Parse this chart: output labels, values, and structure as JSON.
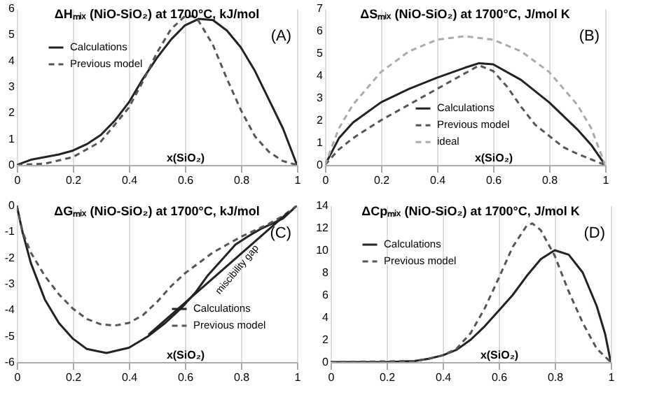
{
  "chart_data": [
    {
      "type": "line",
      "title": "ΔHₘᵢₓ (NiO-SiO₂) at 1700°C, kJ/mol",
      "xlabel": "x(SiO₂)",
      "xlim": [
        0,
        1
      ],
      "xticks": [
        0,
        0.2,
        0.4,
        0.6,
        0.8,
        1
      ],
      "ylim": [
        0,
        6
      ],
      "yticks": [
        0,
        1,
        2,
        3,
        4,
        5,
        6
      ],
      "grid": "x",
      "legend": "top left",
      "annotations": [
        "(A)"
      ],
      "series": [
        {
          "name": "Calculations",
          "color": "#222222",
          "line_style": "solid",
          "x": [
            0,
            0.05,
            0.1,
            0.15,
            0.2,
            0.25,
            0.3,
            0.35,
            0.4,
            0.45,
            0.5,
            0.55,
            0.6,
            0.65,
            0.7,
            0.75,
            0.8,
            0.85,
            0.9,
            0.95,
            1
          ],
          "values": [
            0,
            0.2,
            0.3,
            0.4,
            0.55,
            0.8,
            1.15,
            1.7,
            2.4,
            3.3,
            4.1,
            4.8,
            5.35,
            5.6,
            5.55,
            5.15,
            4.5,
            3.6,
            2.5,
            1.4,
            0
          ]
        },
        {
          "name": "Previous model",
          "color": "#555555",
          "line_style": "dashed",
          "x": [
            0,
            0.1,
            0.2,
            0.3,
            0.4,
            0.45,
            0.5,
            0.55,
            0.6,
            0.63,
            0.65,
            0.7,
            0.75,
            0.8,
            0.85,
            0.9,
            0.95,
            1
          ],
          "values": [
            0,
            0.05,
            0.3,
            0.9,
            2.2,
            3.2,
            4.3,
            5.2,
            5.7,
            5.7,
            5.5,
            4.6,
            3.3,
            2.1,
            1.1,
            0.5,
            0.15,
            0
          ]
        }
      ]
    },
    {
      "type": "line",
      "title": "ΔSₘᵢₓ (NiO-SiO₂) at 1700°C, J/mol K",
      "xlabel": "x(SiO₂)",
      "xlim": [
        0,
        1
      ],
      "xticks": [
        0,
        0.2,
        0.4,
        0.6,
        0.8,
        1
      ],
      "ylim": [
        0,
        7
      ],
      "yticks": [
        0,
        1,
        2,
        3,
        4,
        5,
        6,
        7
      ],
      "grid": "x",
      "legend": "bottom",
      "annotations": [
        "(B)"
      ],
      "series": [
        {
          "name": "Calculations",
          "color": "#222222",
          "line_style": "solid",
          "x": [
            0,
            0.05,
            0.1,
            0.2,
            0.3,
            0.4,
            0.5,
            0.55,
            0.6,
            0.7,
            0.8,
            0.9,
            0.95,
            1
          ],
          "values": [
            0,
            1.2,
            1.9,
            2.8,
            3.4,
            3.9,
            4.35,
            4.55,
            4.5,
            3.8,
            2.8,
            1.6,
            0.9,
            0
          ]
        },
        {
          "name": "Previous model",
          "color": "#555555",
          "line_style": "dashed",
          "x": [
            0,
            0.05,
            0.1,
            0.2,
            0.3,
            0.4,
            0.5,
            0.55,
            0.6,
            0.65,
            0.7,
            0.75,
            0.8,
            0.85,
            0.9,
            0.95,
            1
          ],
          "values": [
            0,
            0.7,
            1.2,
            2.0,
            2.7,
            3.4,
            4.1,
            4.45,
            4.2,
            3.5,
            2.6,
            1.8,
            1.3,
            0.8,
            0.5,
            0.25,
            0
          ]
        },
        {
          "name": "ideal",
          "color": "#aaaaaa",
          "line_style": "dashed",
          "x": [
            0,
            0.05,
            0.1,
            0.2,
            0.3,
            0.4,
            0.5,
            0.6,
            0.7,
            0.8,
            0.9,
            0.95,
            1
          ],
          "values": [
            0,
            1.65,
            2.7,
            4.16,
            5.08,
            5.6,
            5.76,
            5.6,
            5.08,
            4.16,
            2.7,
            1.65,
            0
          ]
        }
      ]
    },
    {
      "type": "line",
      "title": "ΔGₘᵢₓ (NiO-SiO₂) at 1700°C, kJ/mol",
      "xlabel": "x(SiO₂)",
      "xlim": [
        0,
        1
      ],
      "xticks": [
        0,
        0.2,
        0.4,
        0.6,
        0.8,
        1
      ],
      "ylim": [
        -6,
        0
      ],
      "yticks": [
        -6,
        -5,
        -4,
        -3,
        -2,
        -1,
        0
      ],
      "grid": "x",
      "legend": "bottom right",
      "annotations": [
        "(C)",
        {
          "text": "miscibility gap",
          "x": 0.76,
          "y": -2.22
        }
      ],
      "series": [
        {
          "name": "Calculations",
          "color": "#222222",
          "line_style": "solid",
          "x": [
            0,
            0.02,
            0.05,
            0.1,
            0.15,
            0.2,
            0.25,
            0.32,
            0.4,
            0.47,
            0.53,
            0.59,
            0.64,
            0.68,
            0.73,
            0.78,
            0.83,
            0.87,
            0.91,
            0.95,
            1
          ],
          "values": [
            0,
            -1,
            -2.2,
            -3.6,
            -4.5,
            -5.1,
            -5.5,
            -5.65,
            -5.45,
            -5.0,
            -4.5,
            -3.9,
            -3.3,
            -2.7,
            -2.1,
            -1.5,
            -1.15,
            -0.9,
            -0.7,
            -0.5,
            0
          ]
        },
        {
          "name": "Previous model",
          "color": "#555555",
          "line_style": "dashed",
          "x": [
            0,
            0.02,
            0.05,
            0.1,
            0.15,
            0.2,
            0.25,
            0.3,
            0.35,
            0.4,
            0.45,
            0.5,
            0.55,
            0.6,
            0.65,
            0.7,
            0.75,
            0.8,
            0.85,
            0.9,
            0.95,
            1
          ],
          "values": [
            0,
            -1.0,
            -1.8,
            -2.7,
            -3.4,
            -3.95,
            -4.35,
            -4.55,
            -4.6,
            -4.5,
            -4.2,
            -3.7,
            -3.1,
            -2.6,
            -2.2,
            -1.8,
            -1.5,
            -1.2,
            -0.95,
            -0.7,
            -0.4,
            0
          ]
        },
        {
          "color": "#222222",
          "line_style": "solid",
          "x": [
            0.47,
            0.97
          ],
          "values": [
            -4.95,
            -0.25
          ]
        }
      ]
    },
    {
      "type": "line",
      "title": "ΔCpₘᵢₓ (NiO-SiO₂) at 1700°C, J/mol K",
      "xlabel": "x(SiO₂)",
      "xlim": [
        0,
        1
      ],
      "xticks": [
        0,
        0.2,
        0.4,
        0.6,
        0.8,
        1
      ],
      "ylim": [
        0,
        14
      ],
      "yticks": [
        0,
        2,
        4,
        6,
        8,
        10,
        12,
        14
      ],
      "grid": "x",
      "legend": "top left",
      "annotations": [
        "(D)"
      ],
      "series": [
        {
          "name": "Calculations",
          "color": "#222222",
          "line_style": "solid",
          "x": [
            0,
            0.2,
            0.3,
            0.35,
            0.4,
            0.45,
            0.5,
            0.55,
            0.6,
            0.65,
            0.7,
            0.75,
            0.8,
            0.85,
            0.9,
            0.95,
            0.98,
            1
          ],
          "values": [
            0,
            0,
            0.1,
            0.3,
            0.6,
            1.1,
            2.0,
            3.2,
            4.6,
            6.0,
            7.7,
            9.2,
            10,
            9.6,
            8.0,
            5.0,
            2.5,
            0
          ]
        },
        {
          "name": "Previous model",
          "color": "#555555",
          "line_style": "dashed",
          "x": [
            0,
            0.3,
            0.35,
            0.4,
            0.45,
            0.5,
            0.55,
            0.6,
            0.65,
            0.7,
            0.72,
            0.75,
            0.8,
            0.85,
            0.9,
            0.95,
            1
          ],
          "values": [
            0,
            0.1,
            0.3,
            0.6,
            1.2,
            2.6,
            4.8,
            7.5,
            10.3,
            12.2,
            12.4,
            11.8,
            9.5,
            6.3,
            3.5,
            1.2,
            0
          ]
        }
      ]
    }
  ]
}
